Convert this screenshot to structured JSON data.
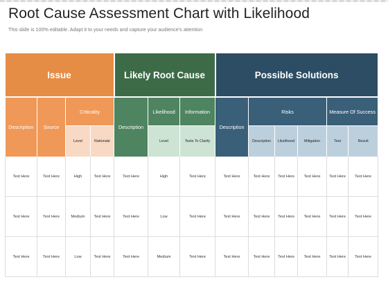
{
  "title": "Root Cause Assessment Chart with Likelihood",
  "subtitle": "This slide is 100% editable. Adapt it to your needs and capture your audience's attention",
  "colors": {
    "issue": "#e58c45",
    "likely_root_cause": "#3d6b48",
    "possible_solutions": "#2c4d63"
  },
  "groups": {
    "issue": "Issue",
    "cause": "Likely Root Cause",
    "solutions": "Possible Solutions"
  },
  "sub_headers": {
    "issue_description": "Description",
    "issue_source": "Source",
    "criticality": "Criticality",
    "cause_description": "Description",
    "likelihood": "Likelihood",
    "information": "Information",
    "solution_description": "Description",
    "risks": "Risks",
    "measure_of_success": "Measure Of Success"
  },
  "third_headers": {
    "crit_level": "Level",
    "crit_rationale": "Rationale",
    "like_level": "Level",
    "tests_to_clarify": "Tests To Clarify",
    "risk_description": "Description",
    "risk_likelihood": "Likelihood",
    "mitigation": "Mitigation",
    "test": "Test",
    "result": "Result"
  },
  "rows": [
    [
      "Text Here",
      "Text Here",
      "High",
      "Text Here",
      "Text Here",
      "High",
      "Text Here",
      "Text Here",
      "Text Here",
      "Text Here",
      "Text Here",
      "Text Here",
      "Text Here"
    ],
    [
      "Text Here",
      "Text Here",
      "Medium",
      "Text Here",
      "Text Here",
      "Low",
      "Text Here",
      "Text Here",
      "Text Here",
      "Text Here",
      "Text Here",
      "Text Here",
      "Text Here"
    ],
    [
      "Text Here",
      "Text Here",
      "Low",
      "Text Here",
      "Text Here",
      "Medium",
      "Text Here",
      "Text Here",
      "Text Here",
      "Text Here",
      "Text Here",
      "Text Here",
      "Text Here"
    ]
  ]
}
